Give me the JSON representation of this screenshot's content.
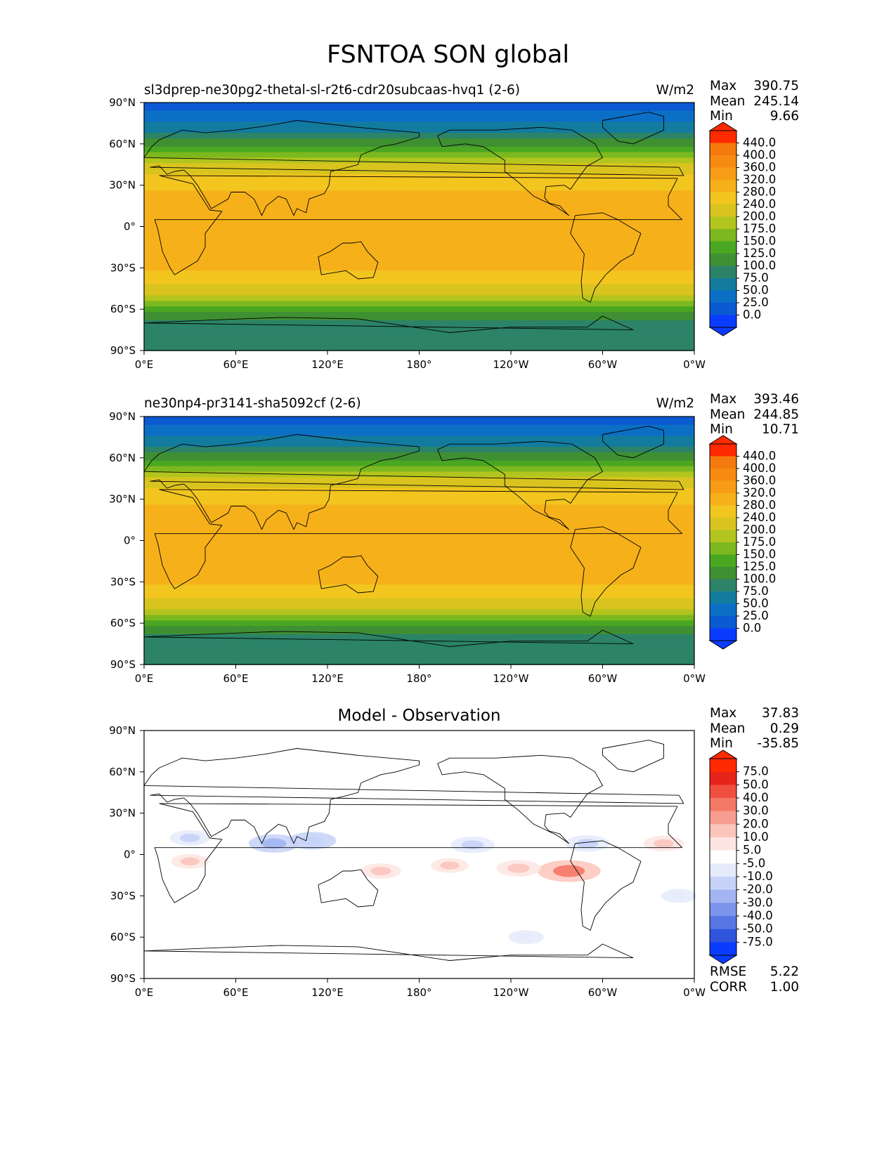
{
  "figure_title": "FSNTOA SON global",
  "panels": [
    {
      "title": "sl3dprep-ne30pg2-thetal-sl-r2t6-cdr20subcaas-hvq1 (2-6)",
      "units": "W/m2",
      "stats": [
        {
          "label": "Max",
          "value": "390.75"
        },
        {
          "label": "Mean",
          "value": "245.14"
        },
        {
          "label": "Min",
          "value": "9.66"
        }
      ],
      "colorbar_labels": [
        "440.0",
        "400.0",
        "360.0",
        "320.0",
        "280.0",
        "240.0",
        "200.0",
        "175.0",
        "150.0",
        "125.0",
        "100.0",
        "75.0",
        "50.0",
        "25.0",
        "0.0"
      ]
    },
    {
      "title": "ne30np4-pr3141-sha5092cf (2-6)",
      "units": "W/m2",
      "stats": [
        {
          "label": "Max",
          "value": "393.46"
        },
        {
          "label": "Mean",
          "value": "244.85"
        },
        {
          "label": "Min",
          "value": "10.71"
        }
      ],
      "colorbar_labels": [
        "440.0",
        "400.0",
        "360.0",
        "320.0",
        "280.0",
        "240.0",
        "200.0",
        "175.0",
        "150.0",
        "125.0",
        "100.0",
        "75.0",
        "50.0",
        "25.0",
        "0.0"
      ]
    },
    {
      "title": "Model - Observation",
      "stats": [
        {
          "label": "Max",
          "value": "37.83"
        },
        {
          "label": "Mean",
          "value": "0.29"
        },
        {
          "label": "Min",
          "value": "-35.85"
        }
      ],
      "extra_stats": [
        {
          "label": "RMSE",
          "value": "5.22"
        },
        {
          "label": "CORR",
          "value": "1.00"
        }
      ],
      "colorbar_labels": [
        "75.0",
        "50.0",
        "40.0",
        "30.0",
        "20.0",
        "10.0",
        "5.0",
        "-5.0",
        "-10.0",
        "-20.0",
        "-30.0",
        "-40.0",
        "-50.0",
        "-75.0"
      ]
    }
  ],
  "colors": {
    "field_bands": [
      "#0a5ad2",
      "#0c6fc6",
      "#137b9e",
      "#2c8367",
      "#3f8f33",
      "#4aa722",
      "#7cb81f",
      "#b2c51e",
      "#d9c41f",
      "#f2c51f",
      "#f6b11a",
      "#f79c14",
      "#f78a10",
      "#f47a0d"
    ],
    "diff_positive": [
      "#fde6e2",
      "#fbc5bc",
      "#f89e91",
      "#f47866",
      "#f04e3e",
      "#e8241a"
    ],
    "diff_negative": [
      "#e5ebfb",
      "#c6d2f8",
      "#a2b5f2",
      "#7c95ec",
      "#5776e4",
      "#2f55dd"
    ],
    "colorbar_top": "#ff2a00",
    "colorbar_bottom": "#0a3cff"
  },
  "chart_data": [
    {
      "type": "heatmap",
      "title": "sl3dprep-ne30pg2-thetal-sl-r2t6-cdr20subcaas-hvq1 (2-6)",
      "units": "W/m2",
      "x_ticks": [
        "0°E",
        "60°E",
        "120°E",
        "180°",
        "120°W",
        "60°W",
        "0°W"
      ],
      "y_ticks": [
        "90°N",
        "60°N",
        "30°N",
        "0°",
        "30°S",
        "60°S",
        "90°S"
      ],
      "xlim": [
        0,
        360
      ],
      "ylim": [
        -90,
        90
      ],
      "colorbar_levels": [
        0,
        25,
        50,
        75,
        100,
        125,
        150,
        175,
        200,
        240,
        280,
        320,
        360,
        400,
        440
      ],
      "zonal_mean_profile": {
        "lat": [
          85,
          75,
          65,
          55,
          45,
          35,
          25,
          15,
          5,
          -5,
          -15,
          -25,
          -35,
          -45,
          -55,
          -65,
          -75,
          -85
        ],
        "value": [
          20,
          50,
          90,
          140,
          205,
          250,
          280,
          300,
          305,
          310,
          310,
          300,
          270,
          230,
          170,
          110,
          75,
          75
        ]
      },
      "max": 390.75,
      "mean": 245.14,
      "min": 9.66
    },
    {
      "type": "heatmap",
      "title": "ne30np4-pr3141-sha5092cf (2-6)",
      "units": "W/m2",
      "x_ticks": [
        "0°E",
        "60°E",
        "120°E",
        "180°",
        "120°W",
        "60°W",
        "0°W"
      ],
      "y_ticks": [
        "90°N",
        "60°N",
        "30°N",
        "0°",
        "30°S",
        "60°S",
        "90°S"
      ],
      "xlim": [
        0,
        360
      ],
      "ylim": [
        -90,
        90
      ],
      "colorbar_levels": [
        0,
        25,
        50,
        75,
        100,
        125,
        150,
        175,
        200,
        240,
        280,
        320,
        360,
        400,
        440
      ],
      "zonal_mean_profile": {
        "lat": [
          85,
          75,
          65,
          55,
          45,
          35,
          25,
          15,
          5,
          -5,
          -15,
          -25,
          -35,
          -45,
          -55,
          -65,
          -75,
          -85
        ],
        "value": [
          20,
          50,
          90,
          140,
          205,
          250,
          280,
          300,
          305,
          310,
          310,
          300,
          270,
          230,
          170,
          110,
          75,
          75
        ]
      },
      "max": 393.46,
      "mean": 244.85,
      "min": 10.71
    },
    {
      "type": "heatmap",
      "title": "Model - Observation",
      "x_ticks": [
        "0°E",
        "60°E",
        "120°E",
        "180°",
        "120°W",
        "60°W",
        "0°W"
      ],
      "y_ticks": [
        "90°N",
        "60°N",
        "30°N",
        "0°",
        "30°S",
        "60°S",
        "90°S"
      ],
      "xlim": [
        0,
        360
      ],
      "ylim": [
        -90,
        90
      ],
      "colorbar_levels": [
        -75,
        -50,
        -40,
        -30,
        -20,
        -10,
        -5,
        5,
        10,
        20,
        30,
        40,
        50,
        75
      ],
      "features": [
        {
          "lon": 278,
          "lat": -12,
          "value": 30
        },
        {
          "lon": 245,
          "lat": -10,
          "value": 15
        },
        {
          "lon": 200,
          "lat": -8,
          "value": 10
        },
        {
          "lon": 155,
          "lat": -12,
          "value": 12
        },
        {
          "lon": 30,
          "lat": -5,
          "value": 10
        },
        {
          "lon": 85,
          "lat": 8,
          "value": -20
        },
        {
          "lon": 110,
          "lat": 10,
          "value": -18
        },
        {
          "lon": 30,
          "lat": 12,
          "value": -12
        },
        {
          "lon": 215,
          "lat": 7,
          "value": -15
        },
        {
          "lon": 290,
          "lat": 8,
          "value": -15
        },
        {
          "lon": 350,
          "lat": -30,
          "value": -8
        },
        {
          "lon": 250,
          "lat": -60,
          "value": -8
        },
        {
          "lon": 340,
          "lat": 8,
          "value": 12
        }
      ],
      "max": 37.83,
      "mean": 0.29,
      "min": -35.85,
      "rmse": 5.22,
      "corr": 1.0
    }
  ]
}
